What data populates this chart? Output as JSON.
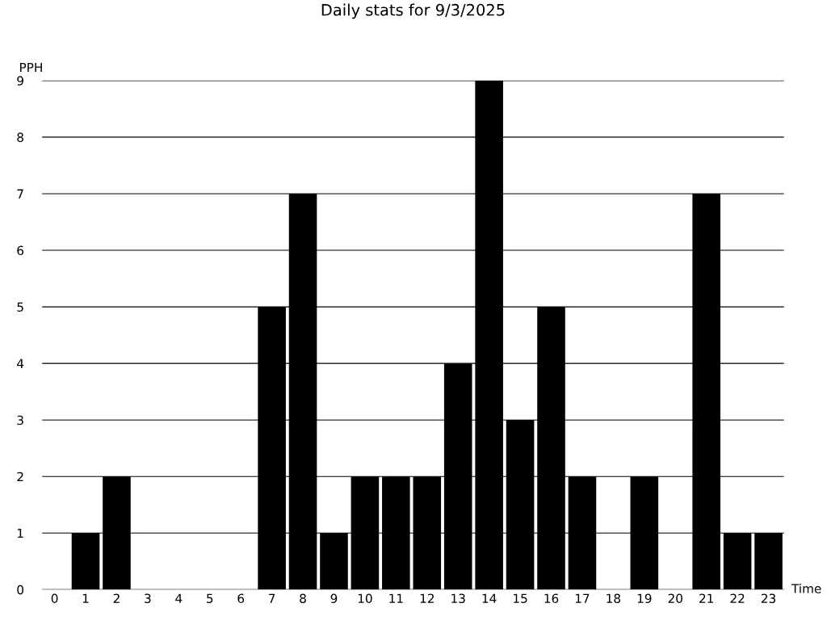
{
  "chart_data": {
    "type": "bar",
    "title": "Daily stats for 9/3/2025",
    "xlabel": "Time",
    "ylabel": "PPH",
    "categories": [
      "0",
      "1",
      "2",
      "3",
      "4",
      "5",
      "6",
      "7",
      "8",
      "9",
      "10",
      "11",
      "12",
      "13",
      "14",
      "15",
      "16",
      "17",
      "18",
      "19",
      "20",
      "21",
      "22",
      "23"
    ],
    "values": [
      0,
      1,
      2,
      0,
      0,
      0,
      0,
      5,
      7,
      1,
      2,
      2,
      2,
      4,
      9,
      3,
      5,
      2,
      0,
      2,
      0,
      7,
      1,
      1
    ],
    "color": "#000000",
    "ylim": [
      0,
      9
    ],
    "yticks": [
      0,
      1,
      2,
      3,
      4,
      5,
      6,
      7,
      8,
      9
    ],
    "grid": "y"
  }
}
